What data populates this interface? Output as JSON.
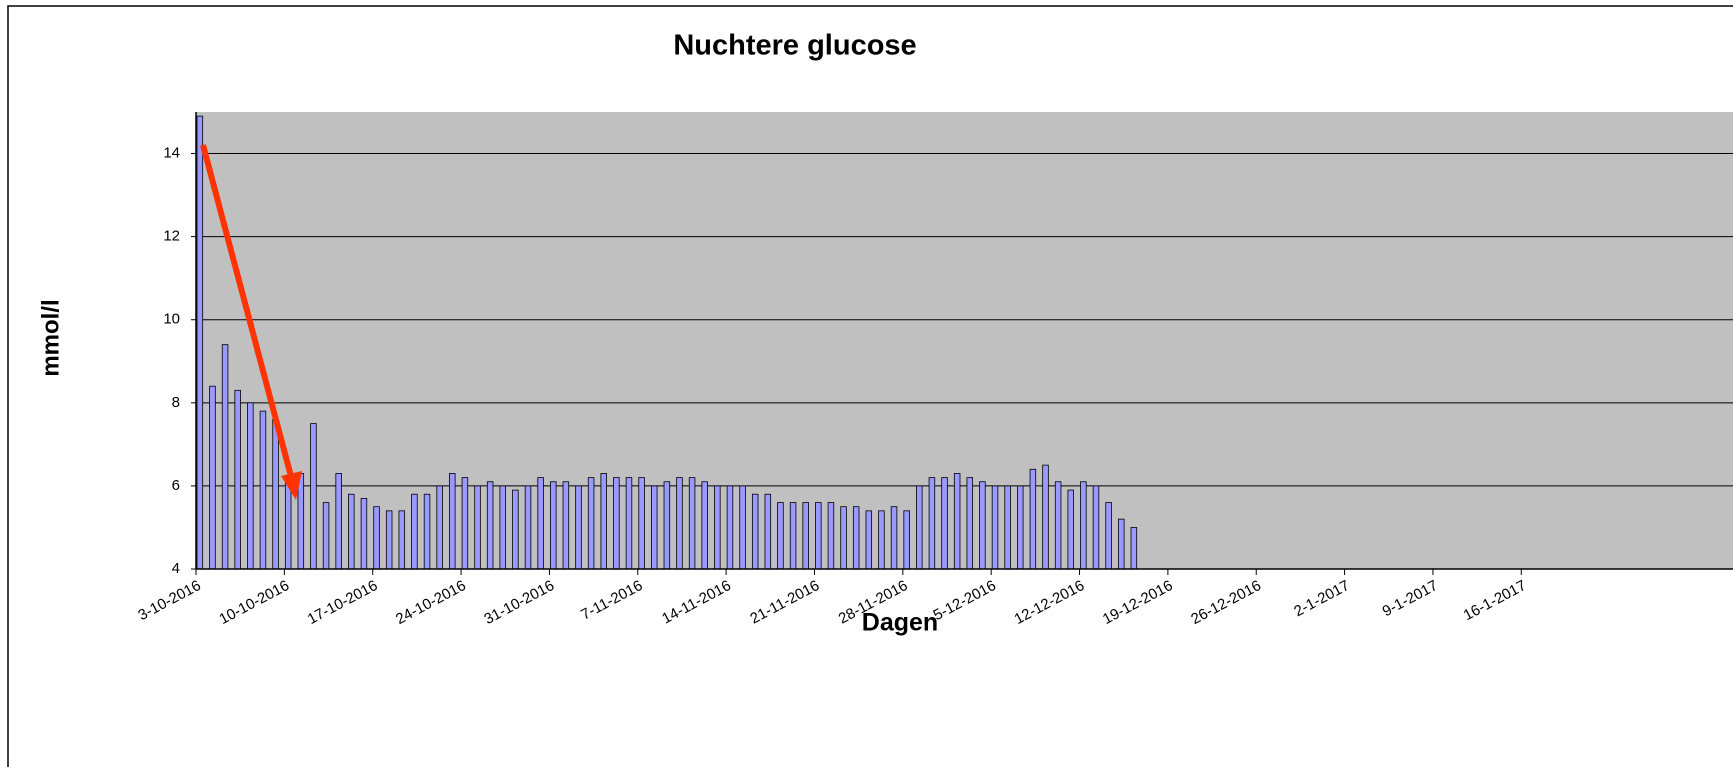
{
  "chart_data": {
    "type": "bar",
    "title": "Nuchtere glucose",
    "x_label": "Dagen",
    "y_label": "mmol/l",
    "color": "#9999ff",
    "grid": true,
    "x": [
      "2016-10-03",
      "2016-10-04",
      "2016-10-05",
      "2016-10-06",
      "2016-10-07",
      "2016-10-08",
      "2016-10-09",
      "2016-10-10",
      "2016-10-11",
      "2016-10-12",
      "2016-10-13",
      "2016-10-14",
      "2016-10-15",
      "2016-10-16",
      "2016-10-17",
      "2016-10-18",
      "2016-10-19",
      "2016-10-20",
      "2016-10-21",
      "2016-10-22",
      "2016-10-23",
      "2016-10-24",
      "2016-10-25",
      "2016-10-26",
      "2016-10-27",
      "2016-10-28",
      "2016-10-29",
      "2016-10-30",
      "2016-10-31",
      "2016-11-01",
      "2016-11-02",
      "2016-11-03",
      "2016-11-04",
      "2016-11-05",
      "2016-11-06",
      "2016-11-07",
      "2016-11-08",
      "2016-11-09",
      "2016-11-10",
      "2016-11-11",
      "2016-11-12",
      "2016-11-13",
      "2016-11-14",
      "2016-11-15",
      "2016-11-16",
      "2016-11-17",
      "2016-11-18",
      "2016-11-19",
      "2016-11-20",
      "2016-11-21",
      "2016-11-22",
      "2016-11-23",
      "2016-11-24",
      "2016-11-25",
      "2016-11-26",
      "2016-11-27",
      "2016-11-28",
      "2016-11-29",
      "2016-11-30",
      "2016-12-01",
      "2016-12-02",
      "2016-12-03",
      "2016-12-04",
      "2016-12-05",
      "2016-12-06",
      "2016-12-07",
      "2016-12-08",
      "2016-12-09",
      "2016-12-10",
      "2016-12-11",
      "2016-12-12",
      "2016-12-13",
      "2016-12-14",
      "2016-12-15",
      "2016-12-16"
    ],
    "values": [
      14.9,
      8.4,
      9.4,
      8.3,
      8.0,
      7.8,
      7.6,
      6.1,
      6.3,
      7.5,
      5.6,
      6.3,
      5.8,
      5.7,
      5.5,
      5.4,
      5.4,
      5.8,
      5.8,
      6.0,
      6.3,
      6.2,
      6.0,
      6.1,
      6.0,
      5.9,
      6.0,
      6.2,
      6.1,
      6.1,
      6.0,
      6.2,
      6.3,
      6.2,
      6.2,
      6.2,
      6.0,
      6.1,
      6.2,
      6.2,
      6.1,
      6.0,
      6.0,
      6.0,
      5.8,
      5.8,
      5.6,
      5.6,
      5.6,
      5.6,
      5.6,
      5.5,
      5.5,
      5.4,
      5.4,
      5.5,
      5.4,
      6.0,
      6.2,
      6.2,
      6.3,
      6.2,
      6.1,
      6.0,
      6.0,
      6.0,
      6.4,
      6.5,
      6.1,
      5.9,
      6.1,
      6.0,
      5.6,
      5.2,
      5.0
    ],
    "xlim": [
      "2016-10-03",
      "2017-01-30"
    ],
    "xticks": [
      {
        "value": "2016-10-03",
        "label": "3-10-2016"
      },
      {
        "value": "2016-10-10",
        "label": "10-10-2016"
      },
      {
        "value": "2016-10-17",
        "label": "17-10-2016"
      },
      {
        "value": "2016-10-24",
        "label": "24-10-2016"
      },
      {
        "value": "2016-10-31",
        "label": "31-10-2016"
      },
      {
        "value": "2016-11-07",
        "label": "7-11-2016"
      },
      {
        "value": "2016-11-14",
        "label": "14-11-2016"
      },
      {
        "value": "2016-11-21",
        "label": "21-11-2016"
      },
      {
        "value": "2016-11-28",
        "label": "28-11-2016"
      },
      {
        "value": "2016-12-05",
        "label": "5-12-2016"
      },
      {
        "value": "2016-12-12",
        "label": "12-12-2016"
      },
      {
        "value": "2016-12-19",
        "label": "19-12-2016"
      },
      {
        "value": "2016-12-26",
        "label": "26-12-2016"
      },
      {
        "value": "2017-01-02",
        "label": "2-1-2017"
      },
      {
        "value": "2017-01-09",
        "label": "9-1-2017"
      },
      {
        "value": "2017-01-16",
        "label": "16-1-2017"
      }
    ],
    "ylim": [
      4,
      15
    ],
    "yticks": [
      4,
      6,
      8,
      10,
      12,
      14
    ]
  }
}
